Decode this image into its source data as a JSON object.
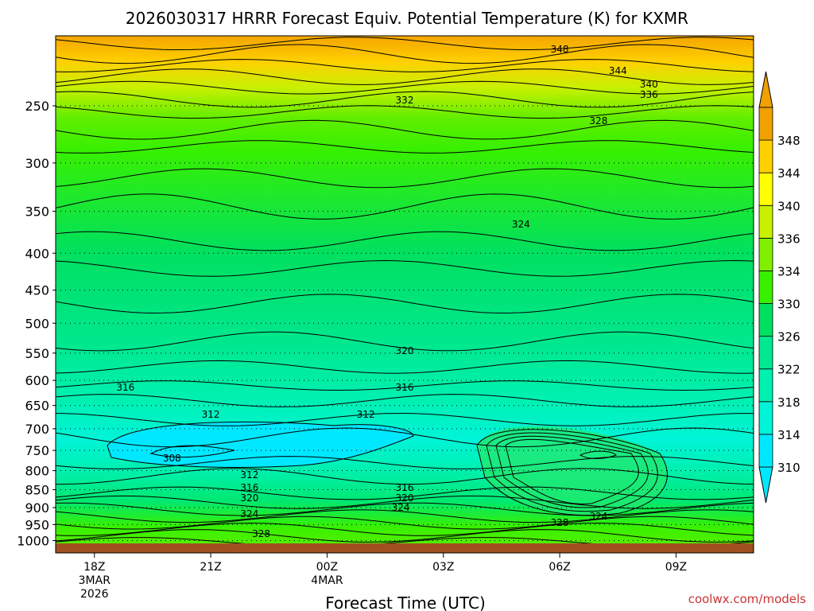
{
  "chart_data": {
    "type": "time-height contour",
    "title": "2026030317 HRRR Forecast Equiv. Potential Temperature (K) for KXMR",
    "xlabel": "Forecast Time (UTC)",
    "ylabel": "",
    "credit": "coolwx.com/models",
    "x_ticks": [
      {
        "hour": 18,
        "lines": [
          "18Z",
          "3MAR",
          "2026"
        ]
      },
      {
        "hour": 21,
        "lines": [
          "21Z"
        ]
      },
      {
        "hour": 24,
        "lines": [
          "00Z",
          "4MAR"
        ]
      },
      {
        "hour": 27,
        "lines": [
          "03Z"
        ]
      },
      {
        "hour": 30,
        "lines": [
          "06Z"
        ]
      },
      {
        "hour": 33,
        "lines": [
          "09Z"
        ]
      }
    ],
    "xlim_hours": [
      17,
      35
    ],
    "y_ticks": [
      250,
      300,
      350,
      400,
      450,
      500,
      550,
      600,
      650,
      700,
      750,
      800,
      850,
      900,
      950,
      1000
    ],
    "ylim_hPa": [
      200,
      1040
    ],
    "y_scale": "log-pressure",
    "levels": [
      310,
      314,
      318,
      322,
      326,
      330,
      334,
      336,
      340,
      344,
      348
    ],
    "colorbar_colors": [
      "#00e8ff",
      "#00f4d8",
      "#00f0b0",
      "#00e890",
      "#00e060",
      "#38f000",
      "#80f000",
      "#c8f000",
      "#ffff00",
      "#ffd000",
      "#f0a000"
    ],
    "surface_color": "#a05020",
    "contours": [
      {
        "value": 348,
        "labels": [
          {
            "hour": 30.0
          }
        ]
      },
      {
        "value": 344,
        "labels": [
          {
            "hour": 31.5
          }
        ]
      },
      {
        "value": 340,
        "labels": [
          {
            "hour": 32.3
          }
        ]
      },
      {
        "value": 336,
        "labels": [
          {
            "hour": 32.3
          }
        ]
      },
      {
        "value": 332,
        "labels": [
          {
            "hour": 26.0
          }
        ]
      },
      {
        "value": 328,
        "labels": [
          {
            "hour": 31.0
          },
          {
            "hour": 22.3
          },
          {
            "hour": 30.0
          }
        ]
      },
      {
        "value": 324,
        "labels": [
          {
            "hour": 29.0
          },
          {
            "hour": 22.0
          },
          {
            "hour": 25.9
          },
          {
            "hour": 31.0
          }
        ]
      },
      {
        "value": 320,
        "labels": [
          {
            "hour": 26.0
          },
          {
            "hour": 22.0
          },
          {
            "hour": 26.0
          }
        ]
      },
      {
        "value": 316,
        "labels": [
          {
            "hour": 18.8
          },
          {
            "hour": 26.0
          },
          {
            "hour": 22.0
          },
          {
            "hour": 26.0
          }
        ]
      },
      {
        "value": 312,
        "labels": [
          {
            "hour": 21.0
          },
          {
            "hour": 25.0
          },
          {
            "hour": 22.0
          }
        ]
      },
      {
        "value": 308,
        "labels": [
          {
            "hour": 20.0
          }
        ]
      }
    ]
  }
}
